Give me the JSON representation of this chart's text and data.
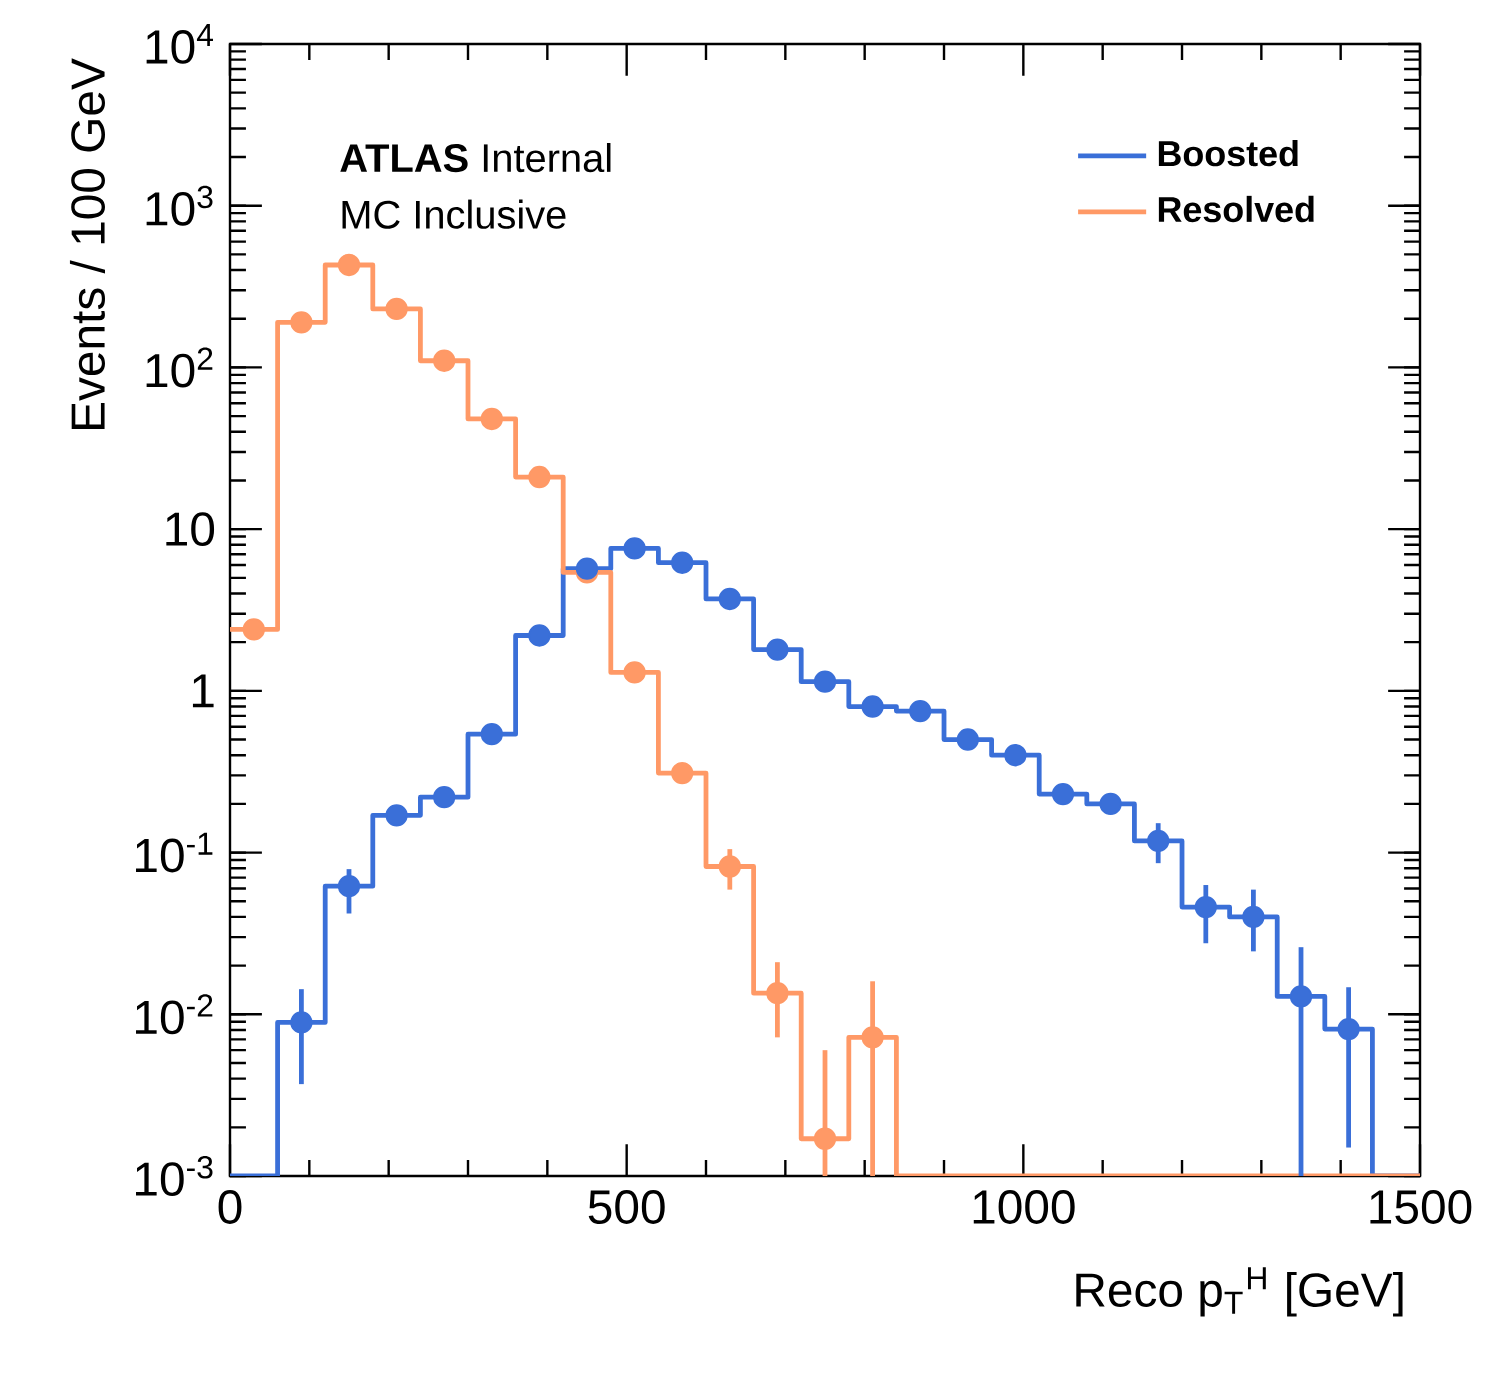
{
  "chart_data": {
    "type": "histogram",
    "xlabel": "Reco p$_{T}$$^{H}$ [GeV]",
    "ylabel": "Events / 100 GeV",
    "annotations": [
      "**ATLAS** Internal",
      "MC Inclusive"
    ],
    "bins": [
      0,
      60,
      120,
      180,
      240,
      300,
      360,
      420,
      480,
      540,
      600,
      660,
      720,
      780,
      840,
      900,
      960,
      1020,
      1080,
      1140,
      1200,
      1260,
      1320,
      1380,
      1440,
      1500
    ],
    "series": [
      {
        "name": "Boosted",
        "color": "#3a6fd8",
        "values": [
          null,
          0.0089,
          0.062,
          0.17,
          0.22,
          0.54,
          2.2,
          5.7,
          7.6,
          6.2,
          3.7,
          1.8,
          1.14,
          0.8,
          0.75,
          0.5,
          0.4,
          0.23,
          0.2,
          0.118,
          0.046,
          0.04,
          0.0129,
          0.0081,
          null
        ]
      },
      {
        "name": "Resolved",
        "color": "#ff9966",
        "values": [
          2.4,
          190,
          430,
          230,
          110,
          48,
          21,
          5.4,
          1.3,
          0.31,
          0.082,
          0.0135,
          0.0017,
          0.0072,
          null,
          null,
          null,
          null,
          null,
          null,
          null,
          null,
          null,
          null,
          null
        ]
      },
      {
        "type": "scatter",
        "color": "#ff9966",
        "x": [
          30,
          90,
          150,
          210,
          270,
          330,
          390,
          450,
          510,
          570,
          630,
          690,
          750,
          810
        ],
        "values": [
          2.4,
          190,
          430,
          230,
          110,
          48,
          21,
          5.4,
          1.3,
          0.31,
          0.082,
          0.0135,
          0.0017,
          0.0072
        ],
        "errors": [
          null,
          null,
          null,
          null,
          null,
          null,
          null,
          null,
          null,
          null,
          [
            0.059,
            0.105
          ],
          [
            0.0072,
            0.021
          ],
          [
            0.001,
            0.006
          ],
          [
            0.001,
            0.016
          ]
        ]
      },
      {
        "type": "scatter",
        "color": "#3a6fd8",
        "x": [
          90,
          150,
          210,
          270,
          330,
          390,
          450,
          510,
          570,
          630,
          690,
          750,
          810,
          870,
          930,
          990,
          1050,
          1110,
          1170,
          1230,
          1290,
          1350,
          1410
        ],
        "values": [
          0.0089,
          0.062,
          0.17,
          0.22,
          0.54,
          2.2,
          5.7,
          7.6,
          6.2,
          3.7,
          1.8,
          1.14,
          0.8,
          0.75,
          0.5,
          0.4,
          0.23,
          0.2,
          0.118,
          0.046,
          0.04,
          0.0129,
          0.0081
        ],
        "errors": [
          [
            0.0037,
            0.0143
          ],
          [
            0.042,
            0.079
          ],
          null,
          null,
          null,
          null,
          null,
          null,
          null,
          null,
          null,
          null,
          null,
          null,
          null,
          null,
          null,
          null,
          [
            0.086,
            0.152
          ],
          [
            0.0275,
            0.063
          ],
          [
            0.0245,
            0.059
          ],
          [
            0.001,
            0.026
          ],
          [
            0.0015,
            0.0147
          ]
        ]
      }
    ],
    "xlim": [
      0,
      1500
    ],
    "xticks": [
      0,
      500,
      1000,
      1500
    ],
    "ylim": [
      0.001,
      10000
    ],
    "yticks": [
      {
        "value": 0.001,
        "label": "10$^{-3}$"
      },
      {
        "value": 0.01,
        "label": "10$^{-2}$"
      },
      {
        "value": 0.1,
        "label": "10$^{-1}$"
      },
      1,
      10,
      {
        "value": 100,
        "label": "10$^{2}$"
      },
      {
        "value": 1000,
        "label": "10$^{3}$"
      },
      {
        "value": 10000,
        "label": "10$^{4}$"
      }
    ],
    "log": "y",
    "legend": "top right",
    "marker": "circle",
    "line_style": "solid"
  }
}
